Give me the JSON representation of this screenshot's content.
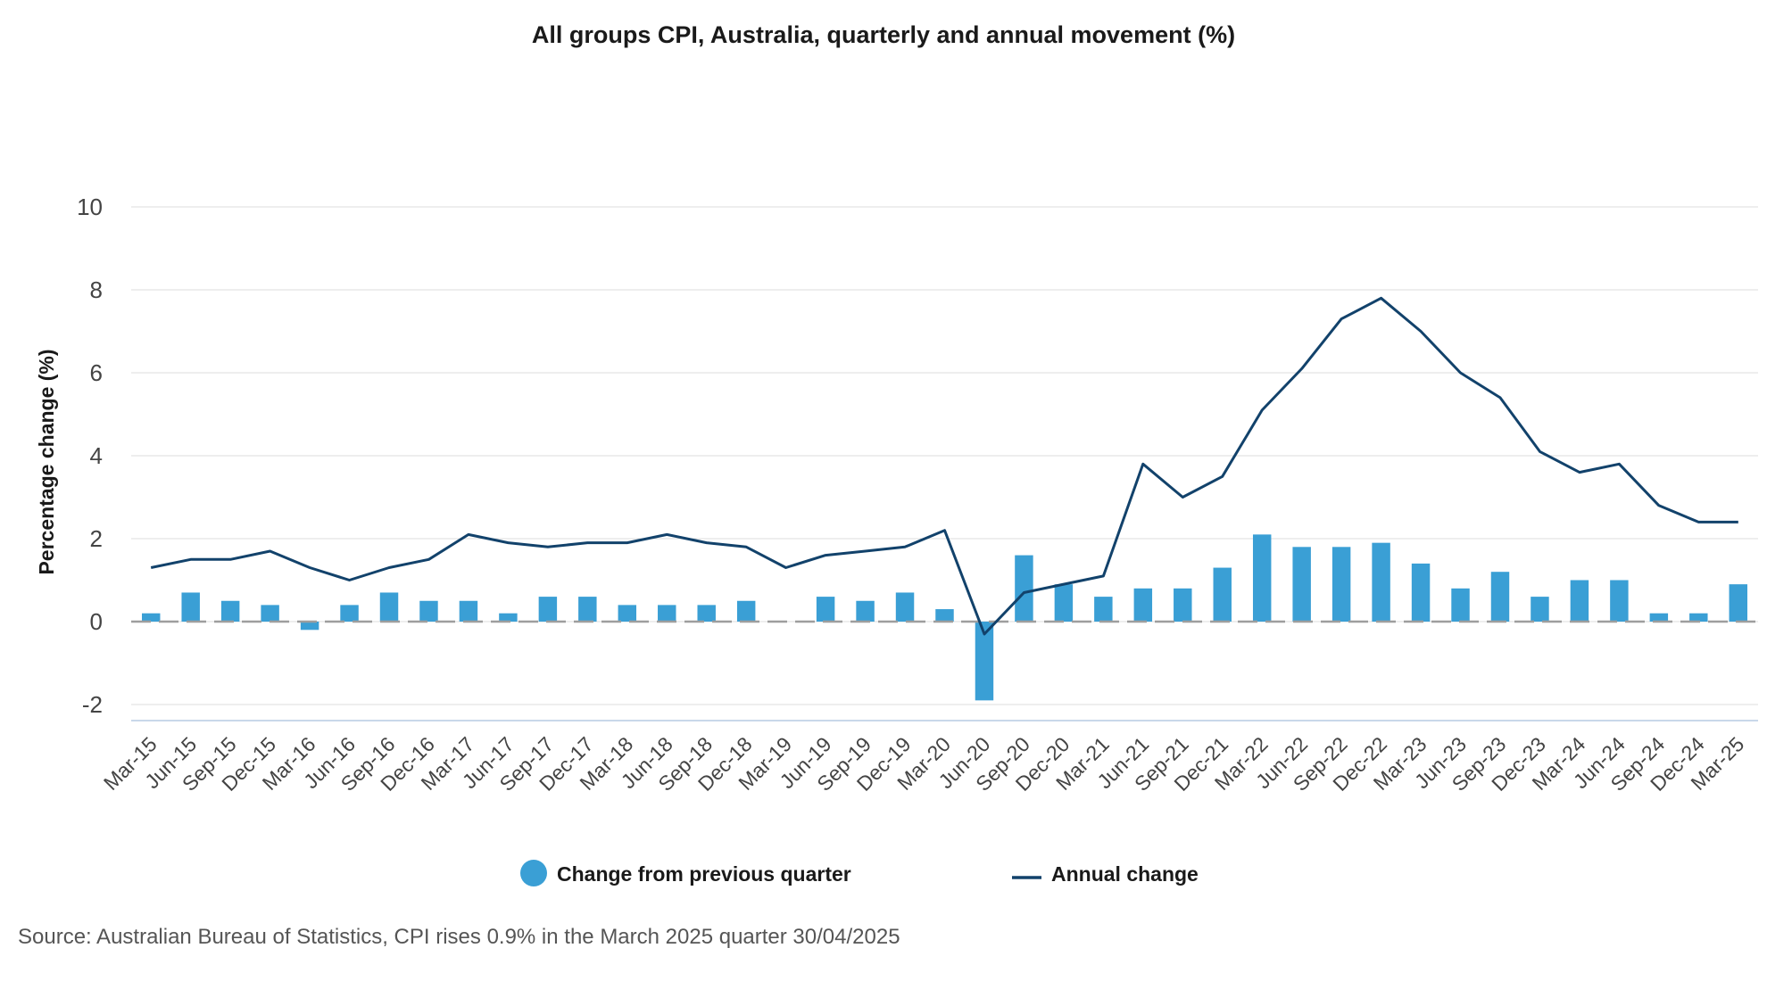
{
  "chart_data": {
    "type": "bar+line",
    "title": "All groups CPI, Australia, quarterly and annual movement (%)",
    "ylabel": "Percentage change (%)",
    "xlabel": "",
    "ylim": [
      -2,
      10
    ],
    "yticks": [
      -2,
      0,
      2,
      4,
      6,
      8,
      10
    ],
    "grid": true,
    "legend_position": "bottom",
    "categories": [
      "Mar-15",
      "Jun-15",
      "Sep-15",
      "Dec-15",
      "Mar-16",
      "Jun-16",
      "Sep-16",
      "Dec-16",
      "Mar-17",
      "Jun-17",
      "Sep-17",
      "Dec-17",
      "Mar-18",
      "Jun-18",
      "Sep-18",
      "Dec-18",
      "Mar-19",
      "Jun-19",
      "Sep-19",
      "Dec-19",
      "Mar-20",
      "Jun-20",
      "Sep-20",
      "Dec-20",
      "Mar-21",
      "Jun-21",
      "Sep-21",
      "Dec-21",
      "Mar-22",
      "Jun-22",
      "Sep-22",
      "Dec-22",
      "Mar-23",
      "Jun-23",
      "Sep-23",
      "Dec-23",
      "Mar-24",
      "Jun-24",
      "Sep-24",
      "Dec-24",
      "Mar-25"
    ],
    "series": [
      {
        "name": "Change from previous quarter",
        "kind": "bar",
        "color": "#3a9fd5",
        "values": [
          0.2,
          0.7,
          0.5,
          0.4,
          -0.2,
          0.4,
          0.7,
          0.5,
          0.5,
          0.2,
          0.6,
          0.6,
          0.4,
          0.4,
          0.4,
          0.5,
          0.0,
          0.6,
          0.5,
          0.7,
          0.3,
          -1.9,
          1.6,
          0.9,
          0.6,
          0.8,
          0.8,
          1.3,
          2.1,
          1.8,
          1.8,
          1.9,
          1.4,
          0.8,
          1.2,
          0.6,
          1.0,
          1.0,
          0.2,
          0.2,
          0.9
        ]
      },
      {
        "name": "Annual change",
        "kind": "line",
        "color": "#12426b",
        "values": [
          1.3,
          1.5,
          1.5,
          1.7,
          1.3,
          1.0,
          1.3,
          1.5,
          2.1,
          1.9,
          1.8,
          1.9,
          1.9,
          2.1,
          1.9,
          1.8,
          1.3,
          1.6,
          1.7,
          1.8,
          2.2,
          -0.3,
          0.7,
          0.9,
          1.1,
          3.8,
          3.0,
          3.5,
          5.1,
          6.1,
          7.3,
          7.8,
          7.0,
          6.0,
          5.4,
          4.1,
          3.6,
          3.8,
          2.8,
          2.4,
          2.4
        ]
      }
    ]
  },
  "source": "Source: Australian Bureau of Statistics, CPI rises 0.9% in the March 2025 quarter 30/04/2025"
}
